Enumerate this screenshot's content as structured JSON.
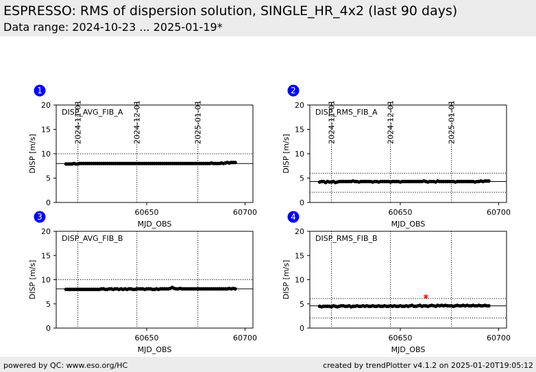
{
  "header": {
    "title": "ESPRESSO: RMS of dispersion solution, SINGLE_HR_4x2 (last 90 days)",
    "subtitle": "Data range: 2024-10-23 ... 2025-01-19*"
  },
  "footer": {
    "left": "powered by QC: www.eso.org/HC",
    "right": "created by trendPlotter v4.1.2 on 2025-01-20T19:05:12"
  },
  "colors": {
    "data": "#000000",
    "outlier": "#ff0000",
    "badge": "#0000ff",
    "header_bg": "#ececec"
  },
  "date_axis": {
    "labels": [
      "2024-11-01",
      "2024-12-01",
      "2025-01-01"
    ],
    "mjd": [
      60615,
      60645,
      60676
    ]
  },
  "chart_data": [
    {
      "id": "1",
      "type": "scatter",
      "label": "DISP_AVG_FIB_A",
      "xlabel": "MJD_OBS",
      "ylabel": "DISP [m/s]",
      "xlim": [
        60604,
        60704
      ],
      "ylim": [
        0,
        20
      ],
      "xticks": [
        60650,
        60700
      ],
      "yticks": [
        0,
        5,
        10,
        15,
        20
      ],
      "ref_line": 8.0,
      "thresholds": [
        10.0
      ],
      "series": [
        {
          "x": [
            60609,
            60610,
            60611,
            60612,
            60613,
            60614,
            60615,
            60616,
            60617,
            60618,
            60619,
            60620,
            60621,
            60622,
            60623,
            60624,
            60625,
            60626,
            60627,
            60628,
            60629,
            60630,
            60631,
            60632,
            60633,
            60634,
            60635,
            60636,
            60637,
            60638,
            60639,
            60640,
            60641,
            60642,
            60643,
            60644,
            60645,
            60646,
            60647,
            60648,
            60649,
            60650,
            60651,
            60652,
            60653,
            60654,
            60655,
            60656,
            60657,
            60658,
            60659,
            60660,
            60661,
            60662,
            60663,
            60664,
            60665,
            60666,
            60667,
            60668,
            60669,
            60670,
            60671,
            60672,
            60673,
            60674,
            60675,
            60676,
            60677,
            60678,
            60679,
            60680,
            60681,
            60682,
            60683,
            60684,
            60685,
            60686,
            60687,
            60688,
            60689,
            60690,
            60691,
            60692,
            60693,
            60694,
            60695
          ],
          "y": [
            7.9,
            7.9,
            7.9,
            7.9,
            8.0,
            7.9,
            7.9,
            8.0,
            8.0,
            8.0,
            8.0,
            8.0,
            8.0,
            8.0,
            8.0,
            8.0,
            8.0,
            8.0,
            8.0,
            8.0,
            8.0,
            8.0,
            8.0,
            8.0,
            8.0,
            8.0,
            8.0,
            8.0,
            8.0,
            8.0,
            8.0,
            8.0,
            8.0,
            8.0,
            8.0,
            8.0,
            8.0,
            8.0,
            8.0,
            8.0,
            8.0,
            8.0,
            8.0,
            8.0,
            8.0,
            8.0,
            8.0,
            8.0,
            8.0,
            8.0,
            8.0,
            8.0,
            8.0,
            8.0,
            8.0,
            8.0,
            8.0,
            8.0,
            8.0,
            8.0,
            8.0,
            8.0,
            8.0,
            8.0,
            8.0,
            8.0,
            8.0,
            8.0,
            8.0,
            8.0,
            8.0,
            8.0,
            8.0,
            8.0,
            8.1,
            8.0,
            8.0,
            8.0,
            8.0,
            8.1,
            8.0,
            8.1,
            8.2,
            8.1,
            8.2,
            8.2,
            8.2
          ]
        }
      ],
      "outliers": []
    },
    {
      "id": "2",
      "type": "scatter",
      "label": "DISP_RMS_FIB_A",
      "xlabel": "MJD_OBS",
      "ylabel": "DISP [m/s]",
      "xlim": [
        60604,
        60704
      ],
      "ylim": [
        0,
        20
      ],
      "xticks": [
        60650,
        60700
      ],
      "yticks": [
        0,
        5,
        10,
        15,
        20
      ],
      "ref_line": 4.3,
      "thresholds": [
        6.0,
        2.1
      ],
      "series": [
        {
          "x": [
            60609,
            60610,
            60611,
            60612,
            60613,
            60614,
            60615,
            60616,
            60617,
            60618,
            60619,
            60620,
            60621,
            60622,
            60623,
            60624,
            60625,
            60626,
            60627,
            60628,
            60629,
            60630,
            60631,
            60632,
            60633,
            60634,
            60635,
            60636,
            60637,
            60638,
            60639,
            60640,
            60641,
            60642,
            60643,
            60644,
            60645,
            60646,
            60647,
            60648,
            60649,
            60650,
            60651,
            60652,
            60653,
            60654,
            60655,
            60656,
            60657,
            60658,
            60659,
            60660,
            60661,
            60662,
            60663,
            60664,
            60665,
            60666,
            60667,
            60668,
            60669,
            60670,
            60671,
            60672,
            60673,
            60674,
            60675,
            60676,
            60677,
            60678,
            60679,
            60680,
            60681,
            60682,
            60683,
            60684,
            60685,
            60686,
            60687,
            60688,
            60689,
            60690,
            60691,
            60692,
            60693,
            60694,
            60695
          ],
          "y": [
            4.2,
            4.3,
            4.3,
            4.1,
            4.3,
            4.2,
            4.2,
            4.3,
            4.1,
            4.2,
            4.3,
            4.3,
            4.3,
            4.3,
            4.3,
            4.3,
            4.3,
            4.4,
            4.3,
            4.3,
            4.2,
            4.3,
            4.3,
            4.3,
            4.3,
            4.3,
            4.3,
            4.2,
            4.3,
            4.3,
            4.2,
            4.3,
            4.3,
            4.3,
            4.3,
            4.3,
            4.2,
            4.3,
            4.3,
            4.3,
            4.3,
            4.2,
            4.3,
            4.3,
            4.3,
            4.3,
            4.3,
            4.3,
            4.3,
            4.3,
            4.3,
            4.3,
            4.3,
            4.4,
            4.3,
            4.2,
            4.3,
            4.3,
            4.3,
            4.2,
            4.4,
            4.3,
            4.3,
            4.3,
            4.3,
            4.3,
            4.3,
            4.3,
            4.3,
            4.2,
            4.3,
            4.3,
            4.3,
            4.3,
            4.3,
            4.3,
            4.3,
            4.3,
            4.3,
            4.2,
            4.3,
            4.3,
            4.4,
            4.3,
            4.4,
            4.4,
            4.4
          ]
        }
      ],
      "outliers": []
    },
    {
      "id": "3",
      "type": "scatter",
      "label": "DISP_AVG_FIB_B",
      "xlabel": "MJD_OBS",
      "ylabel": "DISP [m/s]",
      "xlim": [
        60604,
        60704
      ],
      "ylim": [
        0,
        20
      ],
      "xticks": [
        60650,
        60700
      ],
      "yticks": [
        0,
        5,
        10,
        15,
        20
      ],
      "ref_line": 8.1,
      "thresholds": [
        10.0
      ],
      "series": [
        {
          "x": [
            60609,
            60610,
            60611,
            60612,
            60613,
            60614,
            60615,
            60616,
            60617,
            60618,
            60619,
            60620,
            60621,
            60622,
            60623,
            60624,
            60625,
            60626,
            60627,
            60628,
            60629,
            60630,
            60631,
            60632,
            60633,
            60634,
            60635,
            60636,
            60637,
            60638,
            60639,
            60640,
            60641,
            60642,
            60643,
            60644,
            60645,
            60646,
            60647,
            60648,
            60649,
            60650,
            60651,
            60652,
            60653,
            60654,
            60655,
            60656,
            60657,
            60658,
            60659,
            60660,
            60661,
            60662,
            60663,
            60664,
            60665,
            60666,
            60667,
            60668,
            60669,
            60670,
            60671,
            60672,
            60673,
            60674,
            60675,
            60676,
            60677,
            60678,
            60679,
            60680,
            60681,
            60682,
            60683,
            60684,
            60685,
            60686,
            60687,
            60688,
            60689,
            60690,
            60691,
            60692,
            60693,
            60694,
            60695
          ],
          "y": [
            8.0,
            8.0,
            8.0,
            8.0,
            8.0,
            8.0,
            8.0,
            8.0,
            8.0,
            8.0,
            8.0,
            8.0,
            8.0,
            8.0,
            8.0,
            8.0,
            8.0,
            8.0,
            8.1,
            8.1,
            8.0,
            8.0,
            8.1,
            8.1,
            8.0,
            8.1,
            8.1,
            8.0,
            8.1,
            8.0,
            8.1,
            8.0,
            8.1,
            8.1,
            8.0,
            8.0,
            8.1,
            8.1,
            8.1,
            8.1,
            8.0,
            8.1,
            8.1,
            8.1,
            8.0,
            8.0,
            8.1,
            8.0,
            8.1,
            8.1,
            8.1,
            8.1,
            8.1,
            8.2,
            8.4,
            8.2,
            8.1,
            8.1,
            8.2,
            8.1,
            8.1,
            8.1,
            8.1,
            8.1,
            8.1,
            8.1,
            8.1,
            8.1,
            8.1,
            8.1,
            8.1,
            8.1,
            8.1,
            8.1,
            8.1,
            8.1,
            8.1,
            8.1,
            8.1,
            8.1,
            8.1,
            8.1,
            8.1,
            8.2,
            8.1,
            8.2,
            8.1
          ]
        }
      ],
      "outliers": []
    },
    {
      "id": "4",
      "type": "scatter",
      "label": "DISP_RMS_FIB_B",
      "xlabel": "MJD_OBS",
      "ylabel": "DISP [m/s]",
      "xlim": [
        60604,
        60704
      ],
      "ylim": [
        0,
        20
      ],
      "xticks": [
        60650,
        60700
      ],
      "yticks": [
        0,
        5,
        10,
        15,
        20
      ],
      "ref_line": 4.6,
      "thresholds": [
        6.1,
        2.1
      ],
      "series": [
        {
          "x": [
            60609,
            60610,
            60611,
            60612,
            60613,
            60614,
            60615,
            60616,
            60617,
            60618,
            60619,
            60620,
            60621,
            60622,
            60623,
            60624,
            60625,
            60626,
            60627,
            60628,
            60629,
            60630,
            60631,
            60632,
            60633,
            60634,
            60635,
            60636,
            60637,
            60638,
            60639,
            60640,
            60641,
            60642,
            60643,
            60644,
            60645,
            60646,
            60647,
            60648,
            60649,
            60650,
            60651,
            60652,
            60653,
            60654,
            60655,
            60656,
            60657,
            60658,
            60659,
            60660,
            60661,
            60662,
            60663,
            60664,
            60665,
            60666,
            60667,
            60668,
            60669,
            60670,
            60671,
            60672,
            60673,
            60674,
            60675,
            60676,
            60677,
            60678,
            60679,
            60680,
            60681,
            60682,
            60683,
            60684,
            60685,
            60686,
            60687,
            60688,
            60689,
            60690,
            60691,
            60692,
            60693,
            60694,
            60695
          ],
          "y": [
            4.5,
            4.4,
            4.5,
            4.5,
            4.5,
            4.5,
            4.4,
            4.6,
            4.5,
            4.4,
            4.5,
            4.6,
            4.6,
            4.5,
            4.5,
            4.6,
            4.4,
            4.5,
            4.5,
            4.6,
            4.5,
            4.5,
            4.6,
            4.5,
            4.6,
            4.5,
            4.5,
            4.6,
            4.5,
            4.5,
            4.6,
            4.5,
            4.5,
            4.6,
            4.5,
            4.5,
            4.6,
            4.5,
            4.6,
            4.5,
            4.5,
            4.6,
            4.5,
            4.5,
            4.6,
            4.5,
            4.6,
            4.7,
            4.5,
            4.5,
            4.6,
            4.7,
            4.5,
            4.6,
            4.6,
            4.5,
            4.6,
            4.7,
            4.6,
            4.5,
            4.7,
            4.6,
            4.7,
            4.6,
            4.7,
            4.6,
            4.6,
            4.6,
            4.5,
            4.6,
            4.7,
            4.6,
            4.6,
            4.7,
            4.6,
            4.7,
            4.6,
            4.6,
            4.7,
            4.6,
            4.6,
            4.7,
            4.6,
            4.6,
            4.7,
            4.6,
            4.6
          ]
        }
      ],
      "outliers": [
        {
          "x": 60663,
          "y": 6.5
        }
      ]
    }
  ]
}
